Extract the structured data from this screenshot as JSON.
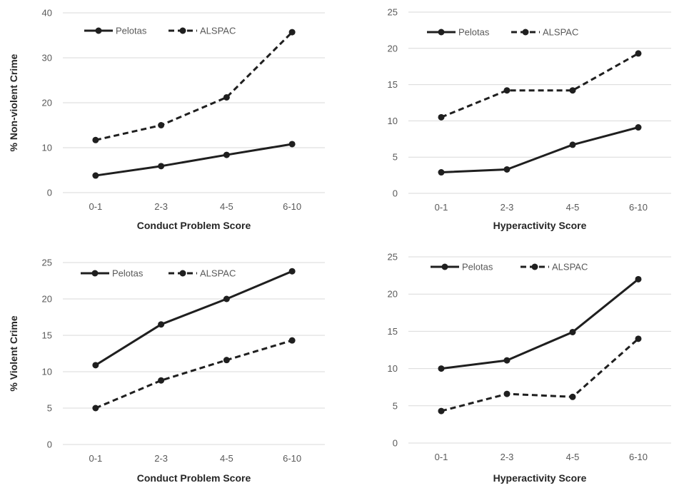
{
  "chart_data": [
    {
      "type": "line",
      "categories": [
        "0-1",
        "2-3",
        "4-5",
        "6-10"
      ],
      "xlabel": "Conduct Problem Score",
      "ylabel": "% Non-violent Crime",
      "ylim": [
        0,
        40
      ],
      "yticks": [
        0,
        10,
        20,
        30,
        40
      ],
      "grid": true,
      "legend": "top-left",
      "series": [
        {
          "name": "Pelotas",
          "style": "solid",
          "values": [
            3.8,
            5.9,
            8.4,
            10.8
          ]
        },
        {
          "name": "ALSPAC",
          "style": "dashed",
          "values": [
            11.7,
            15.0,
            21.2,
            35.7
          ]
        }
      ]
    },
    {
      "type": "line",
      "categories": [
        "0-1",
        "2-3",
        "4-5",
        "6-10"
      ],
      "xlabel": "Hyperactivity Score",
      "ylabel": "",
      "ylim": [
        0,
        25
      ],
      "yticks": [
        0,
        5,
        10,
        15,
        20,
        25
      ],
      "grid": true,
      "legend": "top-left",
      "series": [
        {
          "name": "Pelotas",
          "style": "solid",
          "values": [
            2.9,
            3.3,
            6.7,
            9.1
          ]
        },
        {
          "name": "ALSPAC",
          "style": "dashed",
          "values": [
            10.5,
            14.2,
            14.2,
            19.3
          ]
        }
      ]
    },
    {
      "type": "line",
      "categories": [
        "0-1",
        "2-3",
        "4-5",
        "6-10"
      ],
      "xlabel": "Conduct Problem Score",
      "ylabel": "% Violent Crime",
      "ylim": [
        0,
        25
      ],
      "yticks": [
        0,
        5,
        10,
        15,
        20,
        25
      ],
      "grid": true,
      "legend": "top-left",
      "series": [
        {
          "name": "Pelotas",
          "style": "solid",
          "values": [
            10.9,
            16.5,
            20.0,
            23.8
          ]
        },
        {
          "name": "ALSPAC",
          "style": "dashed",
          "values": [
            5.0,
            8.8,
            11.6,
            14.3
          ]
        }
      ]
    },
    {
      "type": "line",
      "categories": [
        "0-1",
        "2-3",
        "4-5",
        "6-10"
      ],
      "xlabel": "Hyperactivity Score",
      "ylabel": "",
      "ylim": [
        0,
        25
      ],
      "yticks": [
        0,
        5,
        10,
        15,
        20,
        25
      ],
      "grid": true,
      "legend": "top-left",
      "series": [
        {
          "name": "Pelotas",
          "style": "solid",
          "values": [
            10.0,
            11.1,
            14.9,
            22.0
          ]
        },
        {
          "name": "ALSPAC",
          "style": "dashed",
          "values": [
            4.3,
            6.6,
            6.2,
            14.0
          ]
        }
      ]
    }
  ],
  "colors": {
    "series_line": "#1f1f1f",
    "grid": "#d9d9d9",
    "tick_text": "#595959",
    "title_text": "#262626"
  }
}
